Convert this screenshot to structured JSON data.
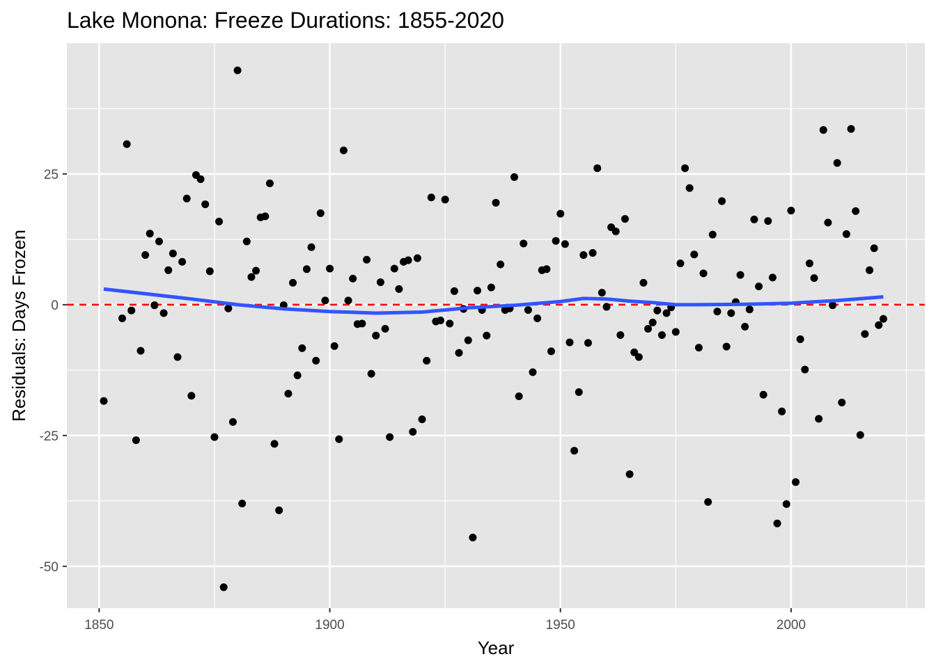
{
  "chart_data": {
    "type": "scatter",
    "title": "Lake Monona: Freeze Durations: 1855-2020",
    "xlabel": "Year",
    "ylabel": "Residuals: Days Frozen",
    "xlim": [
      1843,
      2229
    ],
    "ylim": [
      -58,
      50
    ],
    "xlim_data": [
      1843,
      2029
    ],
    "x_ticks": [
      1850,
      1900,
      1950,
      2000
    ],
    "x_tick_labels": [
      "1850",
      "1900",
      "1950",
      "2000"
    ],
    "y_ticks": [
      25,
      0,
      -25,
      -50
    ],
    "y_tick_labels": [
      "25",
      "0",
      "-25",
      "-50"
    ],
    "x_minor_ticks": [
      1875,
      1925,
      1975,
      2025
    ],
    "y_minor_ticks": [
      37.5,
      12.5,
      -12.5,
      -37.5
    ],
    "grid": true,
    "colors": {
      "panel": "#e5e5e5",
      "grid": "#ffffff",
      "points": "#000000",
      "smooth": "#3355ff",
      "reference": "#ff0000"
    },
    "reference_line": {
      "y": 0,
      "style": "dashed"
    },
    "points": [
      [
        1851,
        -18.4
      ],
      [
        1855,
        -2.6
      ],
      [
        1856,
        30.7
      ],
      [
        1857,
        -1.1
      ],
      [
        1858,
        -25.9
      ],
      [
        1859,
        -8.8
      ],
      [
        1860,
        9.5
      ],
      [
        1861,
        13.6
      ],
      [
        1862,
        -0.1
      ],
      [
        1863,
        12.1
      ],
      [
        1864,
        -1.6
      ],
      [
        1865,
        6.6
      ],
      [
        1866,
        9.8
      ],
      [
        1867,
        -10.0
      ],
      [
        1868,
        8.2
      ],
      [
        1869,
        20.3
      ],
      [
        1870,
        -17.4
      ],
      [
        1871,
        24.8
      ],
      [
        1872,
        24.0
      ],
      [
        1873,
        19.2
      ],
      [
        1874,
        6.4
      ],
      [
        1875,
        -25.3
      ],
      [
        1876,
        15.9
      ],
      [
        1877,
        -54.0
      ],
      [
        1878,
        -0.7
      ],
      [
        1879,
        -22.4
      ],
      [
        1880,
        44.8
      ],
      [
        1881,
        -38.0
      ],
      [
        1882,
        12.1
      ],
      [
        1883,
        5.3
      ],
      [
        1884,
        6.5
      ],
      [
        1885,
        16.7
      ],
      [
        1886,
        16.9
      ],
      [
        1887,
        23.2
      ],
      [
        1888,
        -26.6
      ],
      [
        1889,
        -39.3
      ],
      [
        1890,
        -0.1
      ],
      [
        1891,
        -17.0
      ],
      [
        1892,
        4.2
      ],
      [
        1893,
        -13.5
      ],
      [
        1894,
        -8.3
      ],
      [
        1895,
        6.8
      ],
      [
        1896,
        11.0
      ],
      [
        1897,
        -10.7
      ],
      [
        1898,
        17.5
      ],
      [
        1899,
        0.8
      ],
      [
        1900,
        6.9
      ],
      [
        1901,
        -7.9
      ],
      [
        1902,
        -25.7
      ],
      [
        1903,
        29.5
      ],
      [
        1904,
        0.8
      ],
      [
        1905,
        5.0
      ],
      [
        1906,
        -3.7
      ],
      [
        1907,
        -3.6
      ],
      [
        1908,
        8.6
      ],
      [
        1909,
        -13.2
      ],
      [
        1910,
        -5.9
      ],
      [
        1911,
        4.3
      ],
      [
        1912,
        -4.6
      ],
      [
        1913,
        -25.3
      ],
      [
        1914,
        6.9
      ],
      [
        1915,
        3.0
      ],
      [
        1916,
        8.2
      ],
      [
        1917,
        8.5
      ],
      [
        1918,
        -24.3
      ],
      [
        1919,
        8.9
      ],
      [
        1920,
        -21.9
      ],
      [
        1921,
        -10.7
      ],
      [
        1922,
        20.5
      ],
      [
        1923,
        -3.2
      ],
      [
        1924,
        -3.0
      ],
      [
        1925,
        20.1
      ],
      [
        1926,
        -3.6
      ],
      [
        1927,
        2.6
      ],
      [
        1928,
        -9.2
      ],
      [
        1929,
        -0.8
      ],
      [
        1930,
        -6.8
      ],
      [
        1931,
        -44.5
      ],
      [
        1932,
        2.7
      ],
      [
        1933,
        -1.0
      ],
      [
        1934,
        -5.9
      ],
      [
        1935,
        3.3
      ],
      [
        1936,
        19.5
      ],
      [
        1937,
        7.7
      ],
      [
        1938,
        -1.0
      ],
      [
        1939,
        -0.7
      ],
      [
        1940,
        24.4
      ],
      [
        1941,
        -17.5
      ],
      [
        1942,
        11.7
      ],
      [
        1943,
        -1.0
      ],
      [
        1944,
        -12.9
      ],
      [
        1945,
        -2.6
      ],
      [
        1946,
        6.6
      ],
      [
        1947,
        6.8
      ],
      [
        1948,
        -8.9
      ],
      [
        1949,
        12.2
      ],
      [
        1950,
        17.4
      ],
      [
        1951,
        11.6
      ],
      [
        1952,
        -7.2
      ],
      [
        1953,
        -27.9
      ],
      [
        1954,
        -16.7
      ],
      [
        1955,
        9.5
      ],
      [
        1956,
        -7.3
      ],
      [
        1957,
        9.9
      ],
      [
        1958,
        26.1
      ],
      [
        1959,
        2.3
      ],
      [
        1960,
        -0.4
      ],
      [
        1961,
        14.8
      ],
      [
        1962,
        14.0
      ],
      [
        1963,
        -5.8
      ],
      [
        1964,
        16.4
      ],
      [
        1965,
        -32.4
      ],
      [
        1966,
        -9.1
      ],
      [
        1967,
        -10.0
      ],
      [
        1968,
        4.2
      ],
      [
        1969,
        -4.6
      ],
      [
        1970,
        -3.4
      ],
      [
        1971,
        -1.1
      ],
      [
        1972,
        -5.8
      ],
      [
        1973,
        -1.6
      ],
      [
        1974,
        -0.5
      ],
      [
        1975,
        -5.2
      ],
      [
        1976,
        7.9
      ],
      [
        1977,
        26.1
      ],
      [
        1978,
        22.3
      ],
      [
        1979,
        9.6
      ],
      [
        1980,
        -8.2
      ],
      [
        1981,
        6.0
      ],
      [
        1982,
        -37.7
      ],
      [
        1983,
        13.4
      ],
      [
        1984,
        -1.3
      ],
      [
        1985,
        19.8
      ],
      [
        1986,
        -8.0
      ],
      [
        1987,
        -1.6
      ],
      [
        1988,
        0.5
      ],
      [
        1989,
        5.7
      ],
      [
        1990,
        -4.2
      ],
      [
        1991,
        -0.9
      ],
      [
        1992,
        16.3
      ],
      [
        1993,
        3.5
      ],
      [
        1994,
        -17.2
      ],
      [
        1995,
        16.0
      ],
      [
        1996,
        5.2
      ],
      [
        1997,
        -41.8
      ],
      [
        1998,
        -20.4
      ],
      [
        1999,
        -38.1
      ],
      [
        2000,
        18.0
      ],
      [
        2001,
        -33.9
      ],
      [
        2002,
        -6.6
      ],
      [
        2003,
        -12.4
      ],
      [
        2004,
        7.9
      ],
      [
        2005,
        5.1
      ],
      [
        2006,
        -21.8
      ],
      [
        2007,
        33.4
      ],
      [
        2008,
        15.7
      ],
      [
        2009,
        -0.1
      ],
      [
        2010,
        27.1
      ],
      [
        2011,
        -18.7
      ],
      [
        2012,
        13.5
      ],
      [
        2013,
        33.6
      ],
      [
        2014,
        17.9
      ],
      [
        2015,
        -24.9
      ],
      [
        2016,
        -5.6
      ],
      [
        2017,
        6.6
      ],
      [
        2018,
        10.8
      ],
      [
        2019,
        -3.9
      ],
      [
        2020,
        -2.7
      ]
    ],
    "smooth_line": [
      [
        1851,
        3.0
      ],
      [
        1860,
        2.1
      ],
      [
        1870,
        1.1
      ],
      [
        1880,
        0.0
      ],
      [
        1890,
        -0.8
      ],
      [
        1900,
        -1.3
      ],
      [
        1910,
        -1.6
      ],
      [
        1920,
        -1.4
      ],
      [
        1930,
        -0.6
      ],
      [
        1940,
        -0.1
      ],
      [
        1950,
        0.6
      ],
      [
        1955,
        1.2
      ],
      [
        1960,
        1.1
      ],
      [
        1965,
        0.7
      ],
      [
        1970,
        0.4
      ],
      [
        1975,
        0.0
      ],
      [
        1980,
        0.0
      ],
      [
        1990,
        0.1
      ],
      [
        2000,
        0.3
      ],
      [
        2010,
        0.8
      ],
      [
        2020,
        1.5
      ]
    ]
  }
}
